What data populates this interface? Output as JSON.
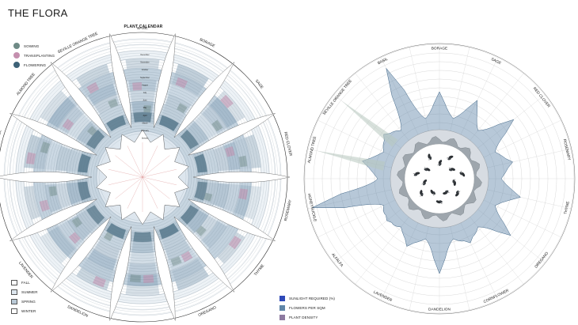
{
  "title": "THE FLORA",
  "calendar": {
    "title": "PLANT CALENDAR",
    "plants": [
      "BASIL",
      "BORAGE",
      "SAGE",
      "RED CLOVER",
      "ROSEMARY",
      "THYME",
      "OREGANO",
      "CORNFLOWER",
      "DANDELION",
      "LAVENDER",
      "ALFALFA",
      "HONEYSUCKLE",
      "ALMOND TREE",
      "SEVILLE ORANGE TREE"
    ],
    "months": [
      "December",
      "November",
      "October",
      "September",
      "August",
      "July",
      "June",
      "May",
      "April",
      "March",
      "February",
      "January"
    ],
    "activity_legend": [
      {
        "label": "SOWING",
        "color": "#6f8a86"
      },
      {
        "label": "TRANSPLANTING",
        "color": "#c48fae"
      },
      {
        "label": "FLOWERING",
        "color": "#3d6277"
      }
    ],
    "season_legend": [
      {
        "label": "FALL",
        "color": "#ffffff"
      },
      {
        "label": "SUMMER",
        "color": "#dde6ee"
      },
      {
        "label": "SPRING",
        "color": "#b9c9d6"
      },
      {
        "label": "WINTER",
        "color": "#ffffff"
      }
    ]
  },
  "radial": {
    "plants": [
      "BASIL",
      "BORAGE",
      "SAGE",
      "RED CLOVER",
      "ROSEMARY",
      "THYME",
      "OREGANO",
      "CORNFLOWER",
      "DANDELION",
      "LAVENDER",
      "ALFALFA",
      "HONEYSUCKLE",
      "ALMOND TREE",
      "SEVILLE ORANGE TREE"
    ],
    "legend": [
      {
        "label": "SUNLIGHT REQUIRED (%)",
        "color": "#2f49b8"
      },
      {
        "label": "FLOWERS PER SQM",
        "color": "#5f86a8"
      },
      {
        "label": "PLANT DENSITY",
        "color": "#8d7aa0"
      }
    ]
  }
}
